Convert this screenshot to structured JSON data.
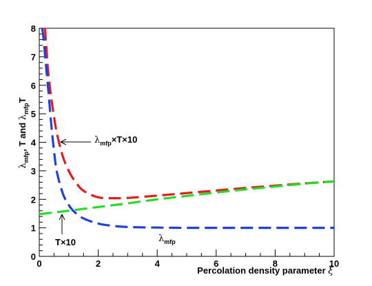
{
  "chart_data": {
    "type": "line",
    "xlabel": "Percolation density parameter ξ",
    "ylabel": "λmfp, T and λmfp T",
    "xlim": [
      0,
      10
    ],
    "ylim": [
      0,
      8
    ],
    "x_ticks": [
      0,
      2,
      4,
      6,
      8,
      10
    ],
    "y_ticks": [
      0,
      1,
      2,
      3,
      4,
      5,
      6,
      7,
      8
    ],
    "grid": false,
    "series": [
      {
        "name": "λmfp×T×10",
        "color": "#e41a1c",
        "dash": "long-dash",
        "x": [
          0.18,
          0.2,
          0.25,
          0.3,
          0.4,
          0.5,
          0.6,
          0.8,
          1.0,
          1.2,
          1.5,
          2.0,
          2.5,
          3.0,
          4.0,
          5.0,
          6.0,
          7.0,
          8.0,
          9.0,
          10.0
        ],
        "y": [
          8.0,
          7.9,
          7.2,
          6.5,
          5.6,
          4.9,
          4.3,
          3.5,
          3.0,
          2.65,
          2.3,
          2.07,
          2.04,
          2.05,
          2.13,
          2.22,
          2.31,
          2.4,
          2.48,
          2.56,
          2.63
        ]
      },
      {
        "name": "T×10",
        "color": "#22dd22",
        "dash": "long-dash",
        "x": [
          0,
          1,
          2,
          3,
          4,
          5,
          6,
          7,
          8,
          9,
          10
        ],
        "y": [
          1.48,
          1.6,
          1.73,
          1.86,
          2.0,
          2.12,
          2.24,
          2.35,
          2.45,
          2.55,
          2.63
        ]
      },
      {
        "name": "λmfp",
        "color": "#1f3fe0",
        "dash": "long-dash",
        "x": [
          0.1,
          0.15,
          0.2,
          0.3,
          0.4,
          0.5,
          0.6,
          0.8,
          1.0,
          1.2,
          1.5,
          2.0,
          2.5,
          3.0,
          4.0,
          5.0,
          6.0,
          8.0,
          10.0
        ],
        "y": [
          8.0,
          7.6,
          7.0,
          5.9,
          4.7,
          3.7,
          2.95,
          2.2,
          1.8,
          1.55,
          1.33,
          1.15,
          1.07,
          1.03,
          1.01,
          1.0,
          1.0,
          1.0,
          1.0
        ]
      }
    ],
    "annotations": [
      {
        "text": "λmfp×T×10",
        "x": 0.55,
        "y": 3.98
      },
      {
        "text": "T×10",
        "x": 0.6,
        "y": 1.45
      },
      {
        "text": "λmfp",
        "x": 4.0,
        "y": 0.8
      }
    ]
  },
  "labels": {
    "xlabel_main": "Percolation density parameter ",
    "xlabel_sym": "ξ",
    "ylabel": {
      "l1": "λ",
      "s1": "mfp",
      "m": ", T and ",
      "l2": "λ",
      "s2": "mfp",
      "end": "T"
    },
    "anno1": {
      "l": "λ",
      "s": "mfp",
      "rest": "×T×10"
    },
    "anno2": {
      "rest": "T×10"
    },
    "anno3": {
      "l": "λ",
      "s": "mfp"
    }
  }
}
